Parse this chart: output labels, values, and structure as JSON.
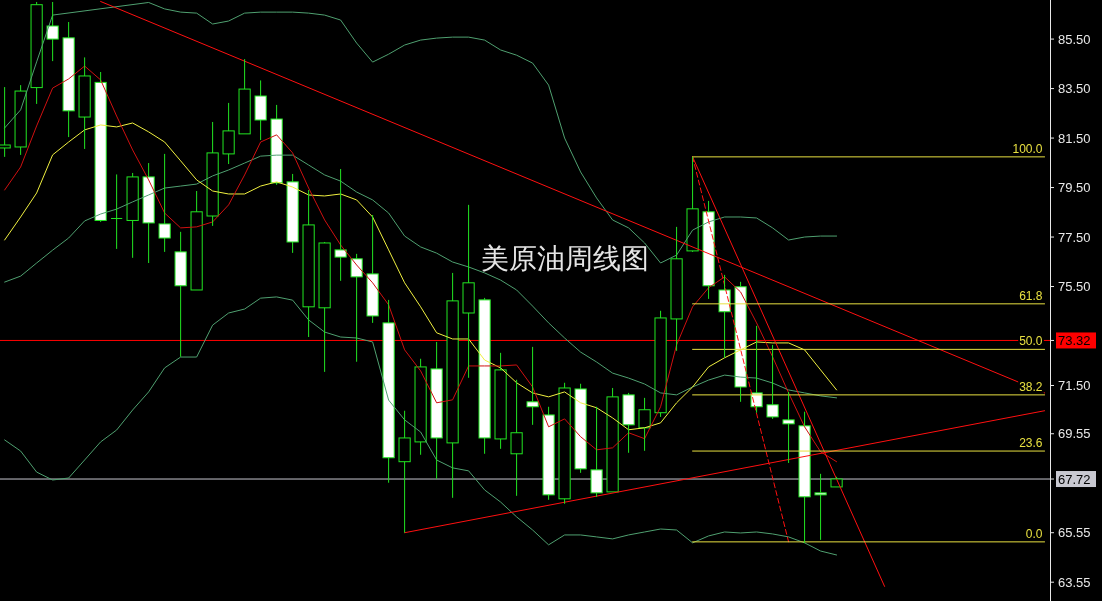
{
  "chart_data": {
    "type": "candlestick",
    "title": "美原油周线图",
    "tick_labels": "y",
    "categories": [
      null,
      null,
      null,
      null,
      null,
      null,
      null,
      null,
      null,
      null,
      null,
      null,
      null,
      null,
      null,
      null,
      null,
      null,
      null,
      null,
      null,
      null,
      null,
      null,
      null,
      null,
      null,
      null,
      null,
      null,
      null,
      null,
      null,
      null,
      null,
      null,
      null,
      null,
      null,
      null,
      null,
      null,
      null,
      null,
      null,
      null,
      null,
      null,
      null,
      null,
      null,
      null,
      null,
      null,
      null,
      null,
      null,
      null,
      null,
      null,
      null,
      null,
      null,
      null,
      null,
      null
    ],
    "ylim": [
      62.79,
      87.08
    ],
    "yticks": [
      {
        "value": 85.5,
        "label": "85.50"
      },
      {
        "value": 83.5,
        "label": "83.50"
      },
      {
        "value": 81.5,
        "label": "81.50"
      },
      {
        "value": 79.5,
        "label": "79.50"
      },
      {
        "value": 77.5,
        "label": "77.50"
      },
      {
        "value": 75.5,
        "label": "75.50"
      },
      {
        "value": 73.32,
        "label": "73.32"
      },
      {
        "value": 71.5,
        "label": "71.50"
      },
      {
        "value": 69.55,
        "label": "69.55"
      },
      {
        "value": 67.72,
        "label": "67.72"
      },
      {
        "value": 65.55,
        "label": "65.55"
      },
      {
        "value": 63.55,
        "label": "63.55"
      }
    ],
    "ohlc": [
      [
        81.1,
        83.56,
        80.74,
        81.22
      ],
      [
        81.14,
        83.64,
        80.82,
        83.4
      ],
      [
        83.54,
        87.0,
        82.88,
        86.89
      ],
      [
        86.03,
        87.0,
        84.61,
        85.5
      ],
      [
        85.55,
        86.19,
        81.54,
        82.6
      ],
      [
        82.35,
        84.76,
        81.06,
        84.01
      ],
      [
        83.75,
        84.17,
        78.11,
        78.17
      ],
      [
        78.25,
        80.03,
        77.02,
        78.25
      ],
      [
        78.17,
        80.09,
        76.66,
        79.93
      ],
      [
        79.93,
        80.49,
        76.45,
        78.07
      ],
      [
        78.03,
        80.86,
        76.9,
        77.46
      ],
      [
        76.9,
        77.71,
        72.66,
        75.53
      ],
      [
        75.36,
        79.36,
        75.36,
        78.52
      ],
      [
        78.35,
        82.15,
        77.95,
        80.9
      ],
      [
        80.86,
        82.92,
        80.45,
        81.79
      ],
      [
        81.67,
        84.69,
        81.67,
        83.48
      ],
      [
        83.2,
        83.83,
        81.42,
        82.23
      ],
      [
        82.27,
        82.84,
        79.61,
        79.69
      ],
      [
        79.73,
        80.05,
        76.86,
        77.3
      ],
      [
        74.68,
        79.4,
        73.46,
        77.99
      ],
      [
        74.64,
        77.3,
        72.05,
        77.26
      ],
      [
        76.98,
        80.25,
        75.73,
        76.69
      ],
      [
        76.62,
        76.82,
        72.46,
        75.89
      ],
      [
        76.01,
        78.39,
        74.03,
        74.31
      ],
      [
        74.03,
        74.96,
        67.57,
        68.58
      ],
      [
        68.42,
        70.48,
        65.55,
        69.38
      ],
      [
        69.22,
        72.58,
        68.7,
        72.25
      ],
      [
        72.17,
        73.26,
        67.73,
        69.38
      ],
      [
        69.18,
        76.05,
        66.96,
        74.92
      ],
      [
        74.43,
        78.8,
        71.81,
        75.65
      ],
      [
        74.96,
        75.04,
        68.74,
        69.38
      ],
      [
        69.34,
        72.82,
        68.94,
        72.13
      ],
      [
        68.74,
        71.73,
        67.04,
        69.59
      ],
      [
        70.84,
        73.06,
        69.91,
        70.64
      ],
      [
        70.31,
        70.64,
        66.88,
        67.08
      ],
      [
        66.92,
        71.61,
        66.72,
        71.4
      ],
      [
        71.36,
        71.57,
        67.97,
        68.13
      ],
      [
        68.09,
        70.64,
        67.0,
        67.16
      ],
      [
        67.2,
        71.4,
        67.2,
        71.04
      ],
      [
        71.12,
        71.2,
        68.78,
        69.91
      ],
      [
        69.79,
        71.0,
        68.86,
        70.52
      ],
      [
        70.4,
        74.52,
        70.23,
        74.23
      ],
      [
        74.19,
        77.91,
        72.9,
        76.62
      ],
      [
        76.94,
        80.74,
        76.9,
        78.64
      ],
      [
        78.52,
        78.96,
        75.0,
        75.53
      ],
      [
        75.36,
        75.97,
        72.62,
        74.48
      ],
      [
        75.49,
        75.69,
        70.84,
        71.44
      ],
      [
        71.2,
        73.91,
        70.4,
        70.64
      ],
      [
        70.72,
        73.14,
        70.15,
        70.23
      ],
      [
        70.11,
        71.24,
        68.37,
        69.95
      ],
      [
        69.87,
        70.44,
        65.14,
        67.0
      ],
      [
        67.16,
        67.93,
        65.26,
        67.08
      ],
      [
        67.4,
        67.81,
        67.4,
        67.72
      ],
      null,
      null,
      null,
      null,
      null,
      null,
      null,
      null,
      null,
      null,
      null,
      null,
      null
    ],
    "ref_lines": [
      {
        "axis": "y",
        "value": 73.32,
        "color": "#ff0000"
      },
      {
        "axis": "y",
        "value": 67.72,
        "color": "#c8c8d0"
      }
    ],
    "series": [
      {
        "type": "line",
        "color": "#4fa070",
        "values": [
          81.91,
          82.64,
          84.58,
          86.47,
          null,
          null,
          null,
          null,
          null,
          86.98,
          86.72,
          86.59,
          86.55,
          86.11,
          86.23,
          86.55,
          86.59,
          86.59,
          86.59,
          86.55,
          86.47,
          86.27,
          85.34,
          84.57,
          84.89,
          85.26,
          85.46,
          85.54,
          85.58,
          85.58,
          85.46,
          85.06,
          84.85,
          84.53,
          83.64,
          81.5,
          80.13,
          79.08,
          78.19,
          77.87,
          77.26,
          76.45,
          76.77,
          77.78,
          78.11,
          78.31,
          78.31,
          78.27,
          77.87,
          77.38,
          77.5,
          77.54,
          77.54,
          null,
          null,
          null,
          null,
          null,
          null,
          null,
          null,
          null,
          null,
          null,
          null,
          null
        ]
      },
      {
        "type": "line",
        "color": "#4fa070",
        "values": [
          75.68,
          75.92,
          76.45,
          76.97,
          77.46,
          78.15,
          78.43,
          78.63,
          78.92,
          79.2,
          79.48,
          79.56,
          79.64,
          79.97,
          80.21,
          80.49,
          80.77,
          80.81,
          80.81,
          80.41,
          80.01,
          79.76,
          79.32,
          79.0,
          78.47,
          77.54,
          77.1,
          76.85,
          76.49,
          76.29,
          76.05,
          75.76,
          75.36,
          74.71,
          74.03,
          73.42,
          72.85,
          72.45,
          72.0,
          71.8,
          71.56,
          71.2,
          71.12,
          71.44,
          71.72,
          71.92,
          71.84,
          71.8,
          71.6,
          71.32,
          71.2,
          71.08,
          71.0,
          null,
          null,
          null,
          null,
          null,
          null,
          null,
          null,
          null,
          null,
          null,
          null,
          null
        ]
      },
      {
        "type": "line",
        "color": "#4fa070",
        "values": [
          69.3,
          68.85,
          68.0,
          67.68,
          67.76,
          68.49,
          69.22,
          69.7,
          70.51,
          71.24,
          72.21,
          72.65,
          72.65,
          73.94,
          74.43,
          74.59,
          75.03,
          75.08,
          74.95,
          74.15,
          73.66,
          73.46,
          73.42,
          73.26,
          70.91,
          70.11,
          69.62,
          68.49,
          68.17,
          68.05,
          67.28,
          66.79,
          66.19,
          65.66,
          65.06,
          65.46,
          65.46,
          65.38,
          65.3,
          65.46,
          65.58,
          65.7,
          65.66,
          65.14,
          65.42,
          65.58,
          65.54,
          65.58,
          65.5,
          65.38,
          65.14,
          64.81,
          64.65,
          null,
          null,
          null,
          null,
          null,
          null,
          null,
          null,
          null,
          null,
          null,
          null,
          null
        ]
      },
      {
        "type": "line",
        "color": "#f0f040",
        "values": [
          77.38,
          78.31,
          79.28,
          80.82,
          81.34,
          81.83,
          82.03,
          81.95,
          82.11,
          81.75,
          81.34,
          80.58,
          79.81,
          79.36,
          79.24,
          79.24,
          79.56,
          79.73,
          79.52,
          79.2,
          79.16,
          79.24,
          79.0,
          78.31,
          76.98,
          75.65,
          74.68,
          73.63,
          73.38,
          73.38,
          72.53,
          72.21,
          71.61,
          71.2,
          71.04,
          71.24,
          70.8,
          70.6,
          70.19,
          69.71,
          69.79,
          69.99,
          70.8,
          71.44,
          72.25,
          72.62,
          72.94,
          73.26,
          73.22,
          73.22,
          72.94,
          72.13,
          71.32,
          null,
          null,
          null,
          null,
          null,
          null,
          null,
          null,
          null,
          null,
          null,
          null,
          null
        ]
      },
      {
        "type": "line",
        "color": "#d01010",
        "values": [
          79.4,
          80.33,
          81.99,
          83.52,
          83.89,
          84.41,
          83.85,
          82.39,
          81.02,
          79.81,
          78.47,
          77.87,
          77.91,
          78.11,
          78.8,
          80.01,
          81.34,
          81.63,
          80.9,
          79.48,
          78.19,
          77.18,
          76.37,
          75.65,
          74.76,
          72.94,
          72.09,
          70.8,
          70.92,
          72.29,
          72.29,
          72.29,
          72.33,
          71.44,
          69.83,
          70.15,
          69.43,
          68.9,
          68.98,
          69.59,
          69.35,
          70.64,
          73.14,
          74.68,
          75.45,
          75.89,
          75.28,
          74.03,
          72.66,
          71.2,
          69.83,
          68.82,
          68.42,
          null,
          null,
          null,
          null,
          null,
          null,
          null,
          null,
          null,
          null,
          null,
          null,
          null
        ]
      },
      {
        "type": "line",
        "color": "#ff1010",
        "values": [
          null,
          null,
          null,
          null,
          null,
          null,
          87.02,
          null,
          null,
          null,
          null,
          null,
          null,
          null,
          null,
          null,
          null,
          null,
          null,
          null,
          null,
          null,
          null,
          null,
          null,
          null,
          null,
          null,
          null,
          null,
          null,
          null,
          null,
          null,
          null,
          null,
          null,
          null,
          null,
          null,
          null,
          null,
          null,
          null,
          null,
          null,
          null,
          null,
          null,
          null,
          null,
          null,
          null,
          null,
          null,
          null,
          null,
          null,
          null,
          null,
          null,
          null,
          null,
          null,
          null,
          71.2
        ]
      },
      {
        "type": "line",
        "color": "#ff1010",
        "values": [
          null,
          null,
          null,
          null,
          null,
          null,
          null,
          null,
          null,
          null,
          null,
          null,
          null,
          null,
          null,
          null,
          null,
          null,
          null,
          null,
          null,
          null,
          null,
          null,
          null,
          65.55,
          null,
          null,
          null,
          null,
          null,
          null,
          null,
          null,
          null,
          null,
          null,
          null,
          null,
          null,
          null,
          null,
          null,
          null,
          null,
          null,
          null,
          null,
          null,
          null,
          null,
          null,
          null,
          null,
          null,
          null,
          null,
          null,
          null,
          null,
          null,
          null,
          null,
          null,
          null,
          70.48
        ]
      },
      {
        "type": "line",
        "color": "#ff1010",
        "values": [
          null,
          null,
          null,
          null,
          null,
          null,
          null,
          null,
          null,
          null,
          null,
          null,
          null,
          null,
          null,
          null,
          null,
          null,
          null,
          null,
          null,
          null,
          null,
          null,
          null,
          null,
          null,
          null,
          null,
          null,
          null,
          null,
          null,
          null,
          null,
          null,
          null,
          null,
          null,
          null,
          null,
          null,
          null,
          80.74,
          null,
          null,
          null,
          null,
          null,
          null,
          null,
          null,
          null,
          null,
          null,
          63.38,
          null,
          null,
          null,
          null,
          null,
          null,
          null,
          null,
          null,
          null
        ]
      },
      {
        "type": "line",
        "color": "#ff1010",
        "line_style": "dashed",
        "values": [
          null,
          null,
          null,
          null,
          null,
          null,
          null,
          null,
          null,
          null,
          null,
          null,
          null,
          null,
          null,
          null,
          null,
          null,
          null,
          null,
          null,
          null,
          null,
          null,
          null,
          null,
          null,
          null,
          null,
          null,
          null,
          null,
          null,
          null,
          null,
          null,
          null,
          null,
          null,
          null,
          null,
          null,
          null,
          80.74,
          null,
          null,
          null,
          null,
          null,
          65.18,
          null,
          null,
          null,
          null,
          null,
          null,
          null,
          null,
          null,
          null,
          null,
          null,
          null,
          null,
          null,
          null
        ]
      },
      {
        "type": "line",
        "name": "100.0",
        "color": "#e8e040",
        "values": [
          null,
          null,
          null,
          null,
          null,
          null,
          null,
          null,
          null,
          null,
          null,
          null,
          null,
          null,
          null,
          null,
          null,
          null,
          null,
          null,
          null,
          null,
          null,
          null,
          null,
          null,
          null,
          null,
          null,
          null,
          null,
          null,
          null,
          null,
          null,
          null,
          null,
          null,
          null,
          null,
          null,
          null,
          null,
          80.74,
          null,
          null,
          null,
          null,
          null,
          null,
          null,
          null,
          null,
          null,
          null,
          null,
          null,
          null,
          null,
          null,
          null,
          null,
          null,
          null,
          null,
          80.74
        ]
      },
      {
        "type": "line",
        "name": "61.8",
        "color": "#e8e040",
        "values": [
          null,
          null,
          null,
          null,
          null,
          null,
          null,
          null,
          null,
          null,
          null,
          null,
          null,
          null,
          null,
          null,
          null,
          null,
          null,
          null,
          null,
          null,
          null,
          null,
          null,
          null,
          null,
          null,
          null,
          null,
          null,
          null,
          null,
          null,
          null,
          null,
          null,
          null,
          null,
          null,
          null,
          null,
          null,
          74.8,
          null,
          null,
          null,
          null,
          null,
          null,
          null,
          null,
          null,
          null,
          null,
          null,
          null,
          null,
          null,
          null,
          null,
          null,
          null,
          null,
          null,
          74.8
        ]
      },
      {
        "type": "line",
        "name": "50.0",
        "color": "#e8e040",
        "values": [
          null,
          null,
          null,
          null,
          null,
          null,
          null,
          null,
          null,
          null,
          null,
          null,
          null,
          null,
          null,
          null,
          null,
          null,
          null,
          null,
          null,
          null,
          null,
          null,
          null,
          null,
          null,
          null,
          null,
          null,
          null,
          null,
          null,
          null,
          null,
          null,
          null,
          null,
          null,
          null,
          null,
          null,
          null,
          72.96,
          null,
          null,
          null,
          null,
          null,
          null,
          null,
          null,
          null,
          null,
          null,
          null,
          null,
          null,
          null,
          null,
          null,
          null,
          null,
          null,
          null,
          72.96
        ]
      },
      {
        "type": "line",
        "name": "38.2",
        "color": "#e8e040",
        "values": [
          null,
          null,
          null,
          null,
          null,
          null,
          null,
          null,
          null,
          null,
          null,
          null,
          null,
          null,
          null,
          null,
          null,
          null,
          null,
          null,
          null,
          null,
          null,
          null,
          null,
          null,
          null,
          null,
          null,
          null,
          null,
          null,
          null,
          null,
          null,
          null,
          null,
          null,
          null,
          null,
          null,
          null,
          null,
          71.12,
          null,
          null,
          null,
          null,
          null,
          null,
          null,
          null,
          null,
          null,
          null,
          null,
          null,
          null,
          null,
          null,
          null,
          null,
          null,
          null,
          null,
          71.12
        ]
      },
      {
        "type": "line",
        "name": "23.6",
        "color": "#e8e040",
        "values": [
          null,
          null,
          null,
          null,
          null,
          null,
          null,
          null,
          null,
          null,
          null,
          null,
          null,
          null,
          null,
          null,
          null,
          null,
          null,
          null,
          null,
          null,
          null,
          null,
          null,
          null,
          null,
          null,
          null,
          null,
          null,
          null,
          null,
          null,
          null,
          null,
          null,
          null,
          null,
          null,
          null,
          null,
          null,
          68.85,
          null,
          null,
          null,
          null,
          null,
          null,
          null,
          null,
          null,
          null,
          null,
          null,
          null,
          null,
          null,
          null,
          null,
          null,
          null,
          null,
          null,
          68.85
        ]
      },
      {
        "type": "line",
        "name": "0.0",
        "color": "#e8e040",
        "values": [
          null,
          null,
          null,
          null,
          null,
          null,
          null,
          null,
          null,
          null,
          null,
          null,
          null,
          null,
          null,
          null,
          null,
          null,
          null,
          null,
          null,
          null,
          null,
          null,
          null,
          null,
          null,
          null,
          null,
          null,
          null,
          null,
          null,
          null,
          null,
          null,
          null,
          null,
          null,
          null,
          null,
          null,
          null,
          65.18,
          null,
          null,
          null,
          null,
          null,
          null,
          null,
          null,
          null,
          null,
          null,
          null,
          null,
          null,
          null,
          null,
          null,
          null,
          null,
          null,
          null,
          65.18
        ]
      }
    ]
  }
}
